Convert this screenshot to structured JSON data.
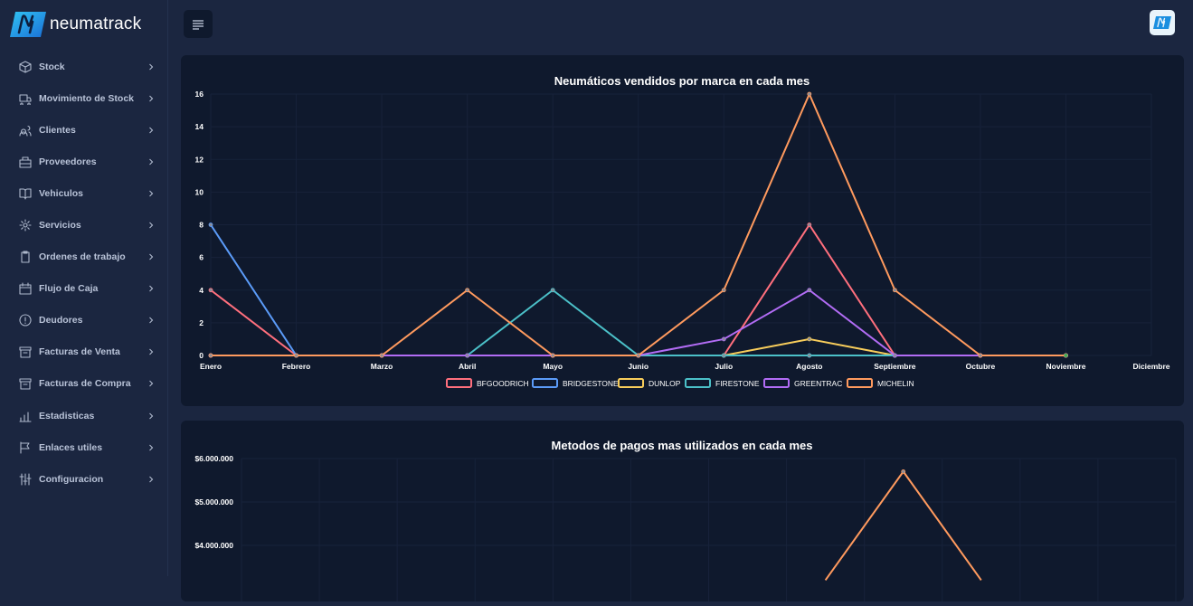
{
  "brand": {
    "name": "neumatrack"
  },
  "sidebar": {
    "items": [
      {
        "label": "Stock",
        "icon": "box-icon"
      },
      {
        "label": "Movimiento de Stock",
        "icon": "truck-icon"
      },
      {
        "label": "Clientes",
        "icon": "users-icon"
      },
      {
        "label": "Proveedores",
        "icon": "building-icon"
      },
      {
        "label": "Vehiculos",
        "icon": "book-icon"
      },
      {
        "label": "Servicios",
        "icon": "gear-icon"
      },
      {
        "label": "Ordenes de trabajo",
        "icon": "clipboard-icon"
      },
      {
        "label": "Flujo de Caja",
        "icon": "calendar-icon"
      },
      {
        "label": "Deudores",
        "icon": "alert-circle-icon"
      },
      {
        "label": "Facturas de Venta",
        "icon": "archive-icon"
      },
      {
        "label": "Facturas de Compra",
        "icon": "archive-icon"
      },
      {
        "label": "Estadisticas",
        "icon": "bar-chart-icon"
      },
      {
        "label": "Enlaces utiles",
        "icon": "flag-icon"
      },
      {
        "label": "Configuracion",
        "icon": "sliders-icon"
      }
    ]
  },
  "colors": {
    "background": "#1b2640",
    "card": "#0f192d",
    "BFGOODRICH": "#ff6f7d",
    "BRIDGESTONE": "#5b9bf8",
    "DUNLOP": "#f8cd5b",
    "FIRESTONE": "#4bc0c8",
    "GREENTRAC": "#b26cf5",
    "MICHELIN": "#ff9a5e"
  },
  "chart_data": [
    {
      "type": "line",
      "title": "Neumáticos vendidos por marca en cada mes",
      "categories": [
        "Enero",
        "Febrero",
        "Marzo",
        "Abril",
        "Mayo",
        "Junio",
        "Julio",
        "Agosto",
        "Septiembre",
        "Octubre",
        "Noviembre",
        "Diciembre"
      ],
      "yticks": [
        "0",
        "2",
        "4",
        "6",
        "8",
        "10",
        "12",
        "14",
        "16"
      ],
      "ylim": [
        0,
        16
      ],
      "legend_position": "bottom",
      "series": [
        {
          "name": "BFGOODRICH",
          "values": [
            4,
            0,
            0,
            0,
            0,
            0,
            0,
            8,
            0,
            0,
            0,
            null
          ]
        },
        {
          "name": "BRIDGESTONE",
          "values": [
            8,
            0,
            0,
            0,
            0,
            0,
            0,
            0,
            0,
            0,
            0,
            null
          ]
        },
        {
          "name": "DUNLOP",
          "values": [
            0,
            0,
            0,
            0,
            0,
            0,
            0,
            1,
            0,
            0,
            0,
            null
          ]
        },
        {
          "name": "FIRESTONE",
          "values": [
            0,
            0,
            0,
            0,
            4,
            0,
            0,
            0,
            0,
            0,
            0,
            null
          ]
        },
        {
          "name": "GREENTRAC",
          "values": [
            0,
            0,
            0,
            0,
            0,
            0,
            1,
            4,
            0,
            0,
            0,
            null
          ]
        },
        {
          "name": "MICHELIN",
          "values": [
            0,
            0,
            0,
            4,
            0,
            0,
            4,
            16,
            4,
            0,
            0,
            null
          ]
        }
      ]
    },
    {
      "type": "line",
      "title": "Metodos de pagos mas utilizados en cada mes",
      "yticks": [
        "$6.000.000",
        "$5.000.000",
        "$4.000.000"
      ],
      "ylim": [
        0,
        6000000
      ],
      "series": [
        {
          "values": [
            null,
            null,
            null,
            null,
            null,
            null,
            null,
            3200000,
            5700000,
            3200000,
            null,
            null
          ]
        }
      ]
    }
  ]
}
